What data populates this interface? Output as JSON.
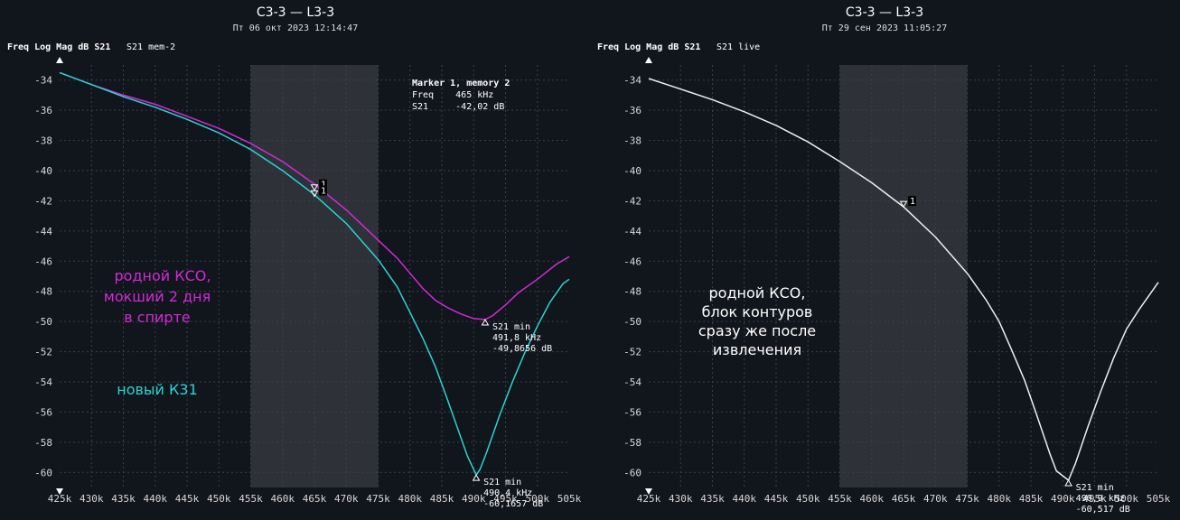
{
  "colors": {
    "background": "#11151c",
    "grid": "#3a3f48",
    "band": "#2e3238",
    "magenta": "#d22ad6",
    "cyan": "#2cd3d3",
    "live": "#eeeeee"
  },
  "chart_data": [
    {
      "type": "line",
      "title": "C3-3 — L3-3",
      "subtitle": "Пт 06 окт 2023 12:14:47",
      "header": {
        "main": "Freq Log Mag dB S21",
        "trace": "S21 mem-2"
      },
      "x_unit": "kHz",
      "xlim": [
        425,
        505
      ],
      "ylim": [
        -61,
        -33
      ],
      "x_ticks": [
        "425k",
        "430k",
        "435k",
        "440k",
        "445k",
        "450k",
        "455k",
        "460k",
        "465k",
        "470k",
        "475k",
        "480k",
        "485k",
        "490k",
        "495k",
        "500k",
        "505k"
      ],
      "y_ticks": [
        "-34",
        "-36",
        "-38",
        "-40",
        "-42",
        "-44",
        "-46",
        "-48",
        "-50",
        "-52",
        "-54",
        "-56",
        "-58",
        "-60"
      ],
      "y_tick_values": [
        -34,
        -36,
        -38,
        -40,
        -42,
        -44,
        -46,
        -48,
        -50,
        -52,
        -54,
        -56,
        -58,
        -60
      ],
      "grid": true,
      "shaded_band": [
        455,
        475
      ],
      "series": [
        {
          "color": "magenta",
          "x": [
            425,
            430,
            435,
            440,
            445,
            450,
            455,
            460,
            465,
            470,
            475,
            478,
            480,
            482,
            484,
            486,
            488,
            490,
            491.8,
            493,
            495,
            497,
            500,
            503,
            505
          ],
          "values": [
            -33.5,
            -34.3,
            -35.0,
            -35.6,
            -36.4,
            -37.2,
            -38.2,
            -39.4,
            -40.9,
            -42.6,
            -44.6,
            -45.8,
            -46.8,
            -47.8,
            -48.6,
            -49.1,
            -49.5,
            -49.8,
            -49.87,
            -49.6,
            -48.9,
            -48.1,
            -47.2,
            -46.2,
            -45.7
          ]
        },
        {
          "color": "cyan",
          "x": [
            425,
            430,
            435,
            440,
            445,
            450,
            455,
            460,
            465,
            470,
            475,
            478,
            480,
            482,
            484,
            486,
            488,
            489,
            490.4,
            491,
            492,
            494,
            496,
            498,
            500,
            502,
            504,
            505
          ],
          "values": [
            -33.5,
            -34.3,
            -35.1,
            -35.8,
            -36.6,
            -37.5,
            -38.6,
            -40.0,
            -41.6,
            -43.5,
            -45.9,
            -47.7,
            -49.4,
            -51.1,
            -53.0,
            -55.3,
            -57.7,
            -58.9,
            -60.17,
            -59.8,
            -58.7,
            -56.3,
            -54.1,
            -52.1,
            -50.3,
            -48.7,
            -47.5,
            -47.2
          ]
        }
      ],
      "markers": [
        {
          "label": "1",
          "x": 465,
          "y": -41.3
        },
        {
          "label": "1",
          "x": 465,
          "y": -41.7
        }
      ],
      "min_markers": [
        {
          "x": 491.8,
          "y": -49.87,
          "lines": [
            "S21 min",
            "491,8 kHz",
            "-49,8656 dB"
          ]
        },
        {
          "x": 490.4,
          "y": -60.17,
          "lines": [
            "S21 min",
            "490,4 kHz",
            "-60,1657 dB"
          ]
        }
      ],
      "readout": [
        "Marker 1, memory 2",
        "Freq    465 kHz",
        "S21     -42,02 dB"
      ],
      "annotations": [
        {
          "color": "magenta",
          "lines": [
            "родной КСО,",
            "мокший 2 дня",
            "в спирте"
          ]
        },
        {
          "color": "cyan",
          "lines": [
            "новый К31"
          ]
        }
      ]
    },
    {
      "type": "line",
      "title": "C3-3 — L3-3",
      "subtitle": "Пт 29 сен 2023 11:05:27",
      "header": {
        "main": "Freq Log Mag dB S21",
        "trace": "S21 live"
      },
      "x_unit": "kHz",
      "xlim": [
        425,
        505
      ],
      "ylim": [
        -61,
        -33
      ],
      "x_ticks": [
        "425k",
        "430k",
        "435k",
        "440k",
        "445k",
        "450k",
        "455k",
        "460k",
        "465k",
        "470k",
        "475k",
        "480k",
        "485k",
        "490k",
        "495k",
        "500k",
        "505k"
      ],
      "y_ticks": [
        "-34",
        "-36",
        "-38",
        "-40",
        "-42",
        "-44",
        "-46",
        "-48",
        "-50",
        "-52",
        "-54",
        "-56",
        "-58",
        "-60"
      ],
      "y_tick_values": [
        -34,
        -36,
        -38,
        -40,
        -42,
        -44,
        -46,
        -48,
        -50,
        -52,
        -54,
        -56,
        -58,
        -60
      ],
      "grid": true,
      "shaded_band": [
        455,
        475
      ],
      "series": [
        {
          "color": "live",
          "x": [
            425,
            430,
            435,
            440,
            445,
            450,
            455,
            460,
            465,
            470,
            475,
            478,
            480,
            482,
            484,
            486,
            488,
            489,
            490.9,
            492,
            494,
            496,
            498,
            500,
            502,
            504,
            505
          ],
          "values": [
            -33.9,
            -34.6,
            -35.3,
            -36.1,
            -37.0,
            -38.1,
            -39.4,
            -40.8,
            -42.4,
            -44.4,
            -46.8,
            -48.6,
            -50.0,
            -51.9,
            -53.9,
            -56.3,
            -58.8,
            -59.9,
            -60.52,
            -59.4,
            -56.9,
            -54.6,
            -52.4,
            -50.5,
            -49.2,
            -48.0,
            -47.4
          ]
        }
      ],
      "markers": [
        {
          "label": "1",
          "x": 465,
          "y": -42.4
        }
      ],
      "min_markers": [
        {
          "x": 490.9,
          "y": -60.52,
          "lines": [
            "S21 min",
            "490,9 kHz",
            "-60,517 dB"
          ]
        }
      ],
      "readout": [],
      "annotations": [
        {
          "color": "live",
          "lines": [
            "родной КСО,",
            "блок контуров",
            "сразу же после",
            "извлечения"
          ]
        }
      ]
    }
  ]
}
